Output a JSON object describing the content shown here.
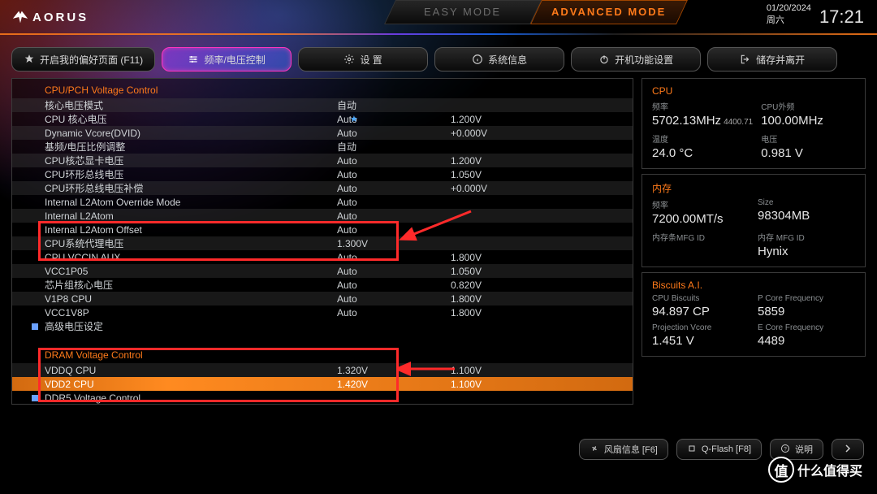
{
  "brand": "AORUS",
  "modes": {
    "easy": "EASY MODE",
    "advanced": "ADVANCED MODE"
  },
  "clock": {
    "date": "01/20/2024",
    "weekday": "周六",
    "time": "17:21"
  },
  "nav": {
    "favorites": "开启我的偏好页面 (F11)",
    "tweaker": "频率/电压控制",
    "settings": "设 置",
    "sysinfo": "系统信息",
    "boot": "开机功能设置",
    "save": "储存并离开"
  },
  "sections": {
    "cpu_pch": "CPU/PCH Voltage Control",
    "adv": "高级电压设定",
    "dram": "DRAM Voltage Control",
    "ddr5": "DDR5 Voltage Control"
  },
  "rows": [
    {
      "lbl": "核心电压模式",
      "v1": "自动"
    },
    {
      "lbl": "CPU 核心电压",
      "v1": "Auto",
      "v2": "1.200V",
      "star": true
    },
    {
      "lbl": "Dynamic Vcore(DVID)",
      "v1": "Auto",
      "v2": "+0.000V"
    },
    {
      "lbl": "基频/电压比例调整",
      "v1": "自动"
    },
    {
      "lbl": "CPU核芯显卡电压",
      "v1": "Auto",
      "v2": "1.200V"
    },
    {
      "lbl": "CPU环形总线电压",
      "v1": "Auto",
      "v2": "1.050V"
    },
    {
      "lbl": "CPU环形总线电压补偿",
      "v1": "Auto",
      "v2": "+0.000V"
    },
    {
      "lbl": "Internal L2Atom Override Mode",
      "v1": "Auto"
    },
    {
      "lbl": "Internal L2Atom",
      "v1": "Auto"
    },
    {
      "lbl": "Internal L2Atom Offset",
      "v1": "Auto"
    },
    {
      "lbl": "CPU系统代理电压",
      "v1": "1.300V"
    },
    {
      "lbl": "CPU VCCIN AUX",
      "v1": "Auto",
      "v2": "1.800V"
    },
    {
      "lbl": "VCC1P05",
      "v1": "Auto",
      "v2": "1.050V"
    },
    {
      "lbl": "芯片组核心电压",
      "v1": "Auto",
      "v2": "0.820V"
    },
    {
      "lbl": "V1P8 CPU",
      "v1": "Auto",
      "v2": "1.800V"
    },
    {
      "lbl": "VCC1V8P",
      "v1": "Auto",
      "v2": "1.800V"
    }
  ],
  "dram_rows": [
    {
      "lbl": "VDDQ CPU",
      "v1": "1.320V",
      "v2": "1.100V"
    },
    {
      "lbl": "VDD2 CPU",
      "v1": "1.420V",
      "v2": "1.100V",
      "hl": true
    }
  ],
  "side": {
    "cpu": {
      "title": "CPU",
      "freq_lbl": "频率",
      "freq": "5702.13MHz",
      "freq_sub": "4400.71",
      "bclk_lbl": "CPU外频",
      "bclk": "100.00MHz",
      "temp_lbl": "温度",
      "temp": "24.0 °C",
      "volt_lbl": "电压",
      "volt": "0.981 V"
    },
    "mem": {
      "title": "内存",
      "freq_lbl": "频率",
      "freq": "7200.00MT/s",
      "size_lbl": "Size",
      "size": "98304MB",
      "mfg_lbl": "内存条MFG ID",
      "mfg": "",
      "dram_mfg_lbl": "内存 MFG ID",
      "dram_mfg": "Hynix"
    },
    "ai": {
      "title": "Biscuits A.I.",
      "cp_lbl": "CPU Biscuits",
      "cp": "94.897 CP",
      "pcore_lbl": "P Core Frequency",
      "pcore": "5859",
      "pv_lbl": "Projection Vcore",
      "pv": "1.451 V",
      "ecore_lbl": "E Core Frequency",
      "ecore": "4489"
    }
  },
  "footer": {
    "fan": "风扇信息 [F6]",
    "qflash": "Q-Flash [F8]",
    "help": "说明"
  },
  "annotation_colors": {
    "box": "#ff2a2a",
    "arrow": "#ff2a2a"
  },
  "watermark": {
    "glyph": "值",
    "text": "什么值得买"
  }
}
